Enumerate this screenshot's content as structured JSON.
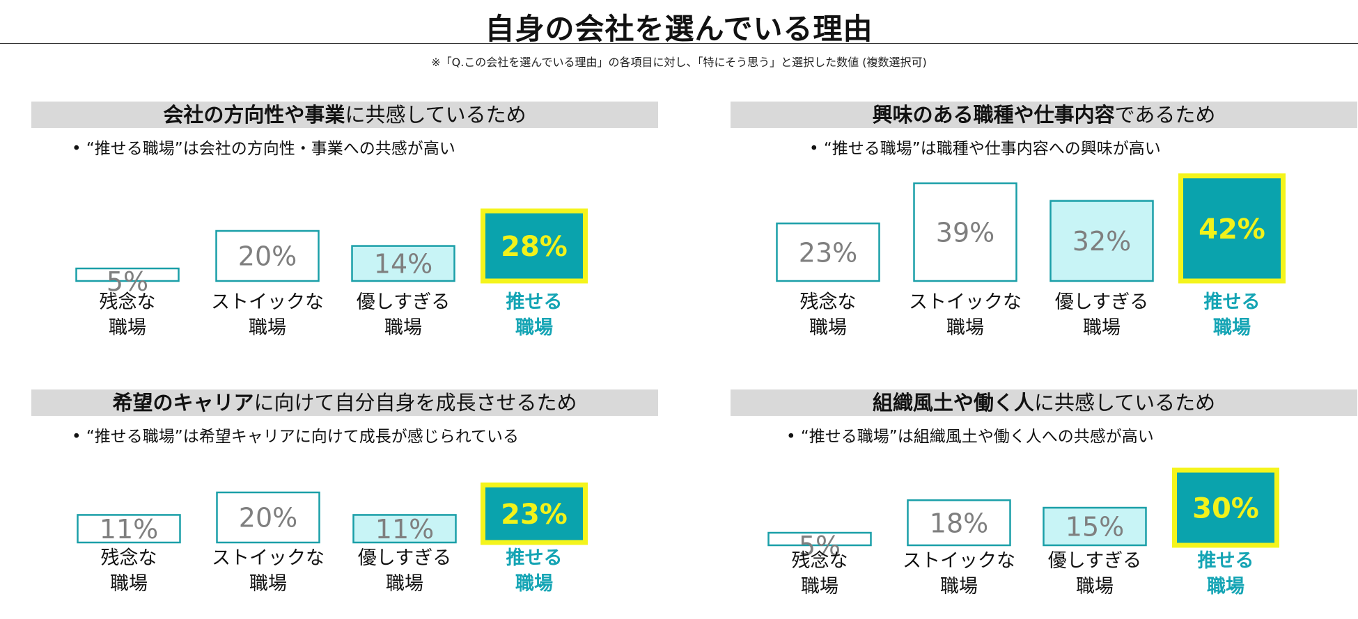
{
  "header": {
    "title": "自身の会社を選んでいる理由",
    "note": "※「Q.この会社を選んでいる理由」の各項目に対し、「特にそう思う」と選択した数値 (複数選択可)"
  },
  "colors": {
    "bar_border": "#1a9fa8",
    "bar_light_fill": "#c8f4f6",
    "highlight_fill": "#0aa3ad",
    "highlight_border": "#f4f41c",
    "highlight_value": "#f2f21a",
    "highlight_label": "#14a4b4",
    "value_text": "#7f7f7f",
    "banner_bg": "#d9d9d9"
  },
  "panels": [
    {
      "title_bold": "会社の方向性や事業",
      "title_rest": "に共感しているため",
      "bullet": "•  “推せる職場”は会社の方向性・事業への共感が高い"
    },
    {
      "title_bold": "興味のある職種や仕事内容",
      "title_rest": "であるため",
      "bullet": "•  “推せる職場”は職種や仕事内容への興味が高い"
    },
    {
      "title_bold": "希望のキャリア",
      "title_rest": "に向けて自分自身を成長させるため",
      "bullet": "•  “推せる職場”は希望キャリアに向けて成長が感じられている"
    },
    {
      "title_bold": "組織風土や働く人",
      "title_rest": "に共感しているため",
      "bullet": "•  “推せる職場”は組織風土や働く人への共感が高い"
    }
  ],
  "chart_data": [
    {
      "type": "bar",
      "title": "会社の方向性や事業に共感しているため",
      "categories": [
        [
          "残念な",
          "職場"
        ],
        [
          "ストイックな",
          "職場"
        ],
        [
          "優しすぎる",
          "職場"
        ],
        [
          "推せる",
          "職場"
        ]
      ],
      "values": [
        5,
        20,
        14,
        28
      ],
      "value_labels": [
        "5%",
        "20%",
        "14%",
        "28%"
      ],
      "unit": "%",
      "highlight_index": 3
    },
    {
      "type": "bar",
      "title": "興味のある職種や仕事内容であるため",
      "categories": [
        [
          "残念な",
          "職場"
        ],
        [
          "ストイックな",
          "職場"
        ],
        [
          "優しすぎる",
          "職場"
        ],
        [
          "推せる",
          "職場"
        ]
      ],
      "values": [
        23,
        39,
        32,
        42
      ],
      "value_labels": [
        "23%",
        "39%",
        "32%",
        "42%"
      ],
      "unit": "%",
      "highlight_index": 3
    },
    {
      "type": "bar",
      "title": "希望のキャリアに向けて自分自身を成長させるため",
      "categories": [
        [
          "残念な",
          "職場"
        ],
        [
          "ストイックな",
          "職場"
        ],
        [
          "優しすぎる",
          "職場"
        ],
        [
          "推せる",
          "職場"
        ]
      ],
      "values": [
        11,
        20,
        11,
        23
      ],
      "value_labels": [
        "11%",
        "20%",
        "11%",
        "23%"
      ],
      "unit": "%",
      "highlight_index": 3
    },
    {
      "type": "bar",
      "title": "組織風土や働く人に共感しているため",
      "categories": [
        [
          "残念な",
          "職場"
        ],
        [
          "ストイックな",
          "職場"
        ],
        [
          "優しすぎる",
          "職場"
        ],
        [
          "推せる",
          "職場"
        ]
      ],
      "values": [
        5,
        18,
        15,
        30
      ],
      "value_labels": [
        "5%",
        "18%",
        "15%",
        "30%"
      ],
      "unit": "%",
      "highlight_index": 3
    }
  ]
}
